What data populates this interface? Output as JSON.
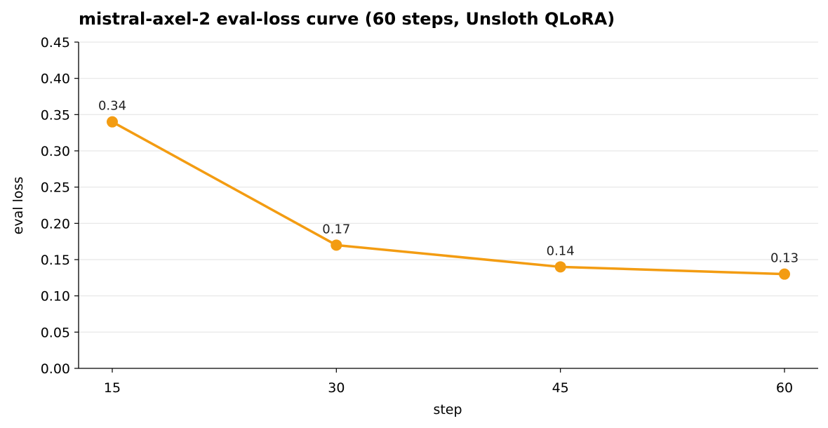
{
  "chart_data": {
    "type": "line",
    "title": "mistral-axel-2 eval-loss curve (60 steps, Unsloth QLoRA)",
    "xlabel": "step",
    "ylabel": "eval loss",
    "x": [
      15,
      30,
      45,
      60
    ],
    "x_tick_labels": [
      "15",
      "30",
      "45",
      "60"
    ],
    "series": [
      {
        "values": [
          0.34,
          0.17,
          0.14,
          0.13
        ]
      }
    ],
    "data_labels": [
      "0.34",
      "0.17",
      "0.14",
      "0.13"
    ],
    "ylim": [
      0,
      0.45
    ],
    "y_ticks": [
      0,
      0.05,
      0.1,
      0.15,
      0.2,
      0.25,
      0.3,
      0.35,
      0.4,
      0.45
    ],
    "y_tick_labels": [
      "0.00",
      "0.05",
      "0.10",
      "0.15",
      "0.20",
      "0.25",
      "0.30",
      "0.35",
      "0.40",
      "0.45"
    ],
    "grid": "horizontal",
    "line_color": "#f39c12",
    "grid_color": "#e6e6e6",
    "axis_color": "#000000"
  }
}
